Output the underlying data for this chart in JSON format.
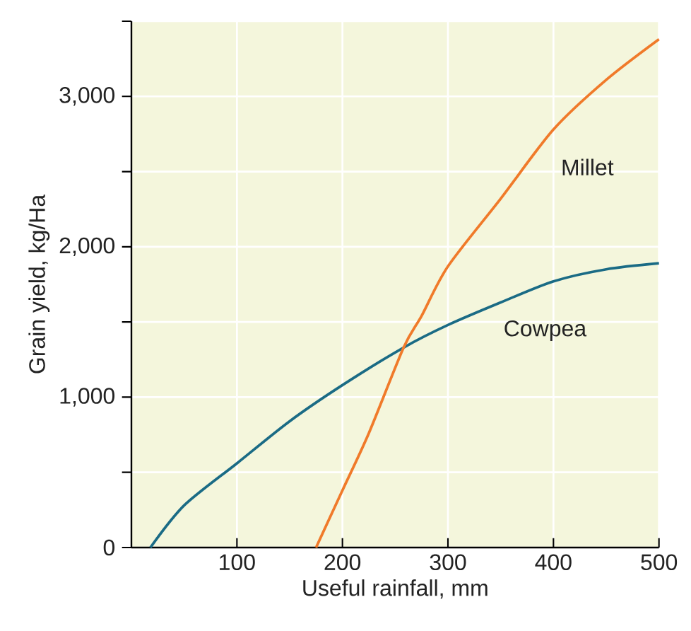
{
  "chart_data": {
    "type": "line",
    "xlabel": "Useful rainfall, mm",
    "ylabel": "Grain yield, kg/Ha",
    "xlim": [
      0,
      500
    ],
    "ylim": [
      0,
      3500
    ],
    "xticks": [
      100,
      200,
      300,
      400,
      500
    ],
    "yticks": [
      0,
      {
        "value": 500,
        "label": null
      },
      {
        "value": 1000,
        "label": "1,000"
      },
      {
        "value": 1500,
        "label": null
      },
      {
        "value": 2000,
        "label": "2,000"
      },
      {
        "value": 2500,
        "label": null
      },
      {
        "value": 3000,
        "label": "3,000"
      },
      {
        "value": 3500,
        "label": null
      }
    ],
    "grid": true,
    "legend": false,
    "marker": "none",
    "line_style": "solid",
    "series": [
      {
        "name": "Cowpea",
        "color": "#1a6b85",
        "x": [
          18,
          50,
          100,
          150,
          200,
          258,
          300,
          350,
          400,
          450,
          500
        ],
        "values": [
          0,
          280,
          560,
          840,
          1080,
          1330,
          1480,
          1630,
          1770,
          1850,
          1890
        ]
      },
      {
        "name": "Millet",
        "color": "#f07a2a",
        "x": [
          175,
          200,
          225,
          258,
          275,
          300,
          350,
          400,
          450,
          500
        ],
        "values": [
          0,
          380,
          760,
          1330,
          1540,
          1870,
          2320,
          2780,
          3110,
          3380
        ]
      }
    ]
  }
}
